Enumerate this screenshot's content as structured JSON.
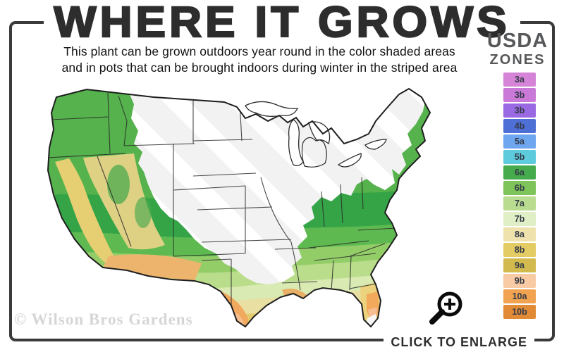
{
  "header": {
    "title": "WHERE IT GROWS",
    "subtitle_line1": "This plant can be grown outdoors year round in the color shaded areas",
    "subtitle_line2": "and in pots that can be brought indoors during winter in the striped area"
  },
  "legend": {
    "title_line1": "USDA",
    "title_line2": "ZONES",
    "zones": [
      {
        "label": "3a",
        "color": "#d584d8"
      },
      {
        "label": "3b",
        "color": "#cb79d8"
      },
      {
        "label": "3b",
        "color": "#9a6ae4"
      },
      {
        "label": "4b",
        "color": "#4d6fd6"
      },
      {
        "label": "5a",
        "color": "#6fa6f0"
      },
      {
        "label": "5b",
        "color": "#5ecbdc"
      },
      {
        "label": "6a",
        "color": "#46ab4d"
      },
      {
        "label": "6b",
        "color": "#7fc45a"
      },
      {
        "label": "7a",
        "color": "#b9dc90"
      },
      {
        "label": "7b",
        "color": "#e0efc6"
      },
      {
        "label": "8a",
        "color": "#efe2ad"
      },
      {
        "label": "8b",
        "color": "#e3cc64"
      },
      {
        "label": "9a",
        "color": "#d3ba4f"
      },
      {
        "label": "9b",
        "color": "#f8cba4"
      },
      {
        "label": "10a",
        "color": "#f1a351"
      },
      {
        "label": "10b",
        "color": "#e18b37"
      }
    ]
  },
  "map": {
    "type": "choropleth",
    "region": "contiguous United States",
    "shaded_meaning": "can be grown outdoors year round",
    "striped_meaning": "grow in pots brought indoors during winter"
  },
  "footer": {
    "watermark": "© Wilson Bros Gardens",
    "enlarge_label": "CLICK TO ENLARGE",
    "magnifier_icon": "magnifier-plus"
  },
  "colors": {
    "frame_border": "#3a3a3a",
    "title": "#2d2d2d",
    "subtitle": "#141414",
    "legend_title": "#57585a",
    "watermark": "#d6d6d6",
    "enlarge": "#2d2d2d",
    "stripe_base": "#f2f2f2",
    "stripe": "#ffffff"
  }
}
